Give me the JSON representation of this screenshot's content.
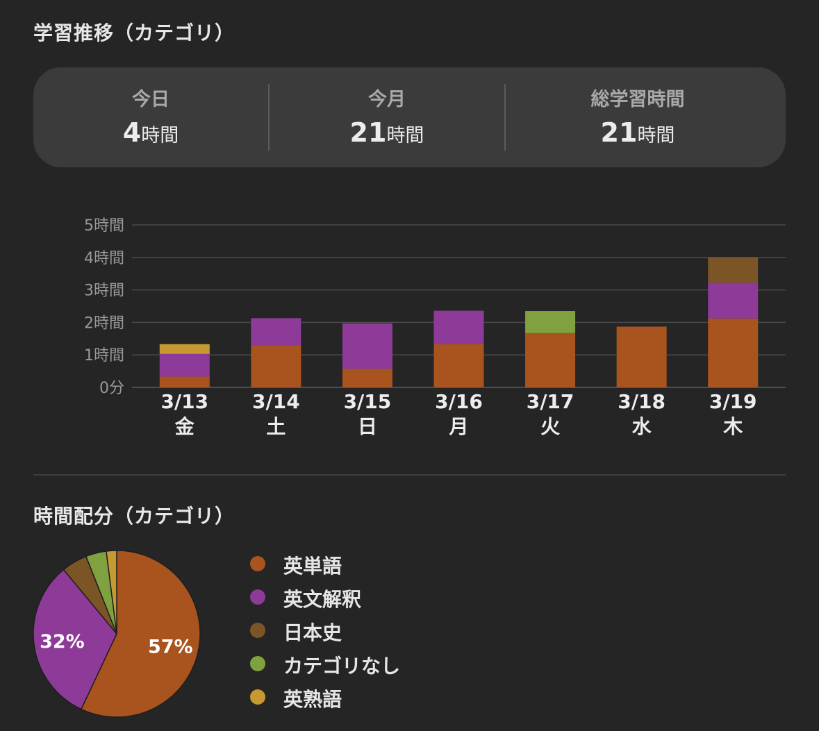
{
  "sections": {
    "trend_title": "学習推移（カテゴリ）",
    "distribution_title": "時間配分（カテゴリ）"
  },
  "summary": [
    {
      "label": "今日",
      "value": "4",
      "unit": "時間"
    },
    {
      "label": "今月",
      "value": "21",
      "unit": "時間"
    },
    {
      "label": "総学習時間",
      "value": "21",
      "unit": "時間"
    }
  ],
  "colors": {
    "英単語": "#a9541f",
    "英文解釈": "#8e3a98",
    "日本史": "#7b5526",
    "カテゴリなし": "#7fa13f",
    "英熟語": "#c69a31",
    "background": "#252525",
    "card": "#3b3b3b"
  },
  "chart_data": [
    {
      "type": "bar",
      "stacked": true,
      "categories": [
        "3/13",
        "3/14",
        "3/15",
        "3/16",
        "3/17",
        "3/18",
        "3/19"
      ],
      "weekdays": [
        "金",
        "土",
        "日",
        "月",
        "火",
        "水",
        "木"
      ],
      "yticks": [
        "0分",
        "1時間",
        "2時間",
        "3時間",
        "4時間",
        "5時間"
      ],
      "ylim": [
        0,
        5
      ],
      "grid": true,
      "series": [
        {
          "name": "英単語",
          "values": [
            0.33,
            1.3,
            0.57,
            1.33,
            1.67,
            1.87,
            2.12
          ]
        },
        {
          "name": "英文解釈",
          "values": [
            0.7,
            0.83,
            1.4,
            1.03,
            0,
            0,
            1.1
          ]
        },
        {
          "name": "日本史",
          "values": [
            0,
            0,
            0,
            0,
            0,
            0,
            0.78
          ]
        },
        {
          "name": "カテゴリなし",
          "values": [
            0,
            0,
            0,
            0,
            0.68,
            0,
            0
          ]
        },
        {
          "name": "英熟語",
          "values": [
            0.3,
            0,
            0,
            0,
            0,
            0,
            0
          ]
        }
      ]
    },
    {
      "type": "pie",
      "labels": [
        "英単語",
        "英文解釈",
        "日本史",
        "カテゴリなし",
        "英熟語"
      ],
      "values": [
        57,
        32,
        5,
        4,
        2
      ],
      "data_labels": [
        "57%",
        "32%",
        "",
        "",
        ""
      ],
      "legend": "right"
    }
  ]
}
